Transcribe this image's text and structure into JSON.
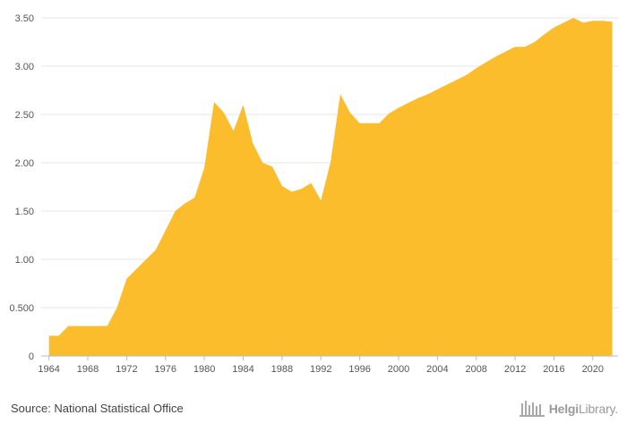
{
  "chart_data": {
    "type": "area",
    "title": "",
    "xlabel": "",
    "ylabel": "",
    "color": "#fbbd2c",
    "grid": true,
    "xlim": [
      1963.2,
      2022.6
    ],
    "ylim": [
      0,
      3.5
    ],
    "x_ticks": [
      1964,
      1968,
      1972,
      1976,
      1980,
      1984,
      1988,
      1992,
      1996,
      2000,
      2004,
      2008,
      2012,
      2016,
      2020
    ],
    "y_ticks": [
      0,
      0.5,
      1.0,
      1.5,
      2.0,
      2.5,
      3.0,
      3.5
    ],
    "y_tick_labels": [
      "0",
      "0.500",
      "1.00",
      "1.50",
      "2.00",
      "2.50",
      "3.00",
      "3.50"
    ],
    "series": [
      {
        "x": [
          1964,
          1965,
          1966,
          1967,
          1968,
          1969,
          1970,
          1971,
          1972,
          1973,
          1974,
          1975,
          1976,
          1977,
          1978,
          1979,
          1980,
          1981,
          1982,
          1983,
          1984,
          1985,
          1986,
          1987,
          1988,
          1989,
          1990,
          1991,
          1992,
          1993,
          1994,
          1995,
          1996,
          1997,
          1998,
          1999,
          2000,
          2001,
          2002,
          2003,
          2004,
          2005,
          2006,
          2007,
          2008,
          2009,
          2010,
          2011,
          2012,
          2013,
          2014,
          2015,
          2016,
          2017,
          2018,
          2019,
          2020,
          2021,
          2022
        ],
        "values": [
          0.21,
          0.21,
          0.31,
          0.31,
          0.31,
          0.31,
          0.31,
          0.5,
          0.8,
          0.9,
          1.0,
          1.1,
          1.3,
          1.5,
          1.58,
          1.64,
          1.95,
          2.63,
          2.52,
          2.33,
          2.6,
          2.2,
          2.0,
          1.96,
          1.76,
          1.7,
          1.73,
          1.79,
          1.61,
          2.01,
          2.71,
          2.52,
          2.41,
          2.41,
          2.41,
          2.51,
          2.57,
          2.62,
          2.67,
          2.71,
          2.76,
          2.81,
          2.86,
          2.91,
          2.98,
          3.04,
          3.1,
          3.15,
          3.2,
          3.2,
          3.25,
          3.33,
          3.4,
          3.45,
          3.5,
          3.45,
          3.47,
          3.47,
          3.46
        ]
      }
    ]
  },
  "footer": {
    "source": "Source: National Statistical Office",
    "logo_bold": "Helgi",
    "logo_rest": "Library."
  }
}
